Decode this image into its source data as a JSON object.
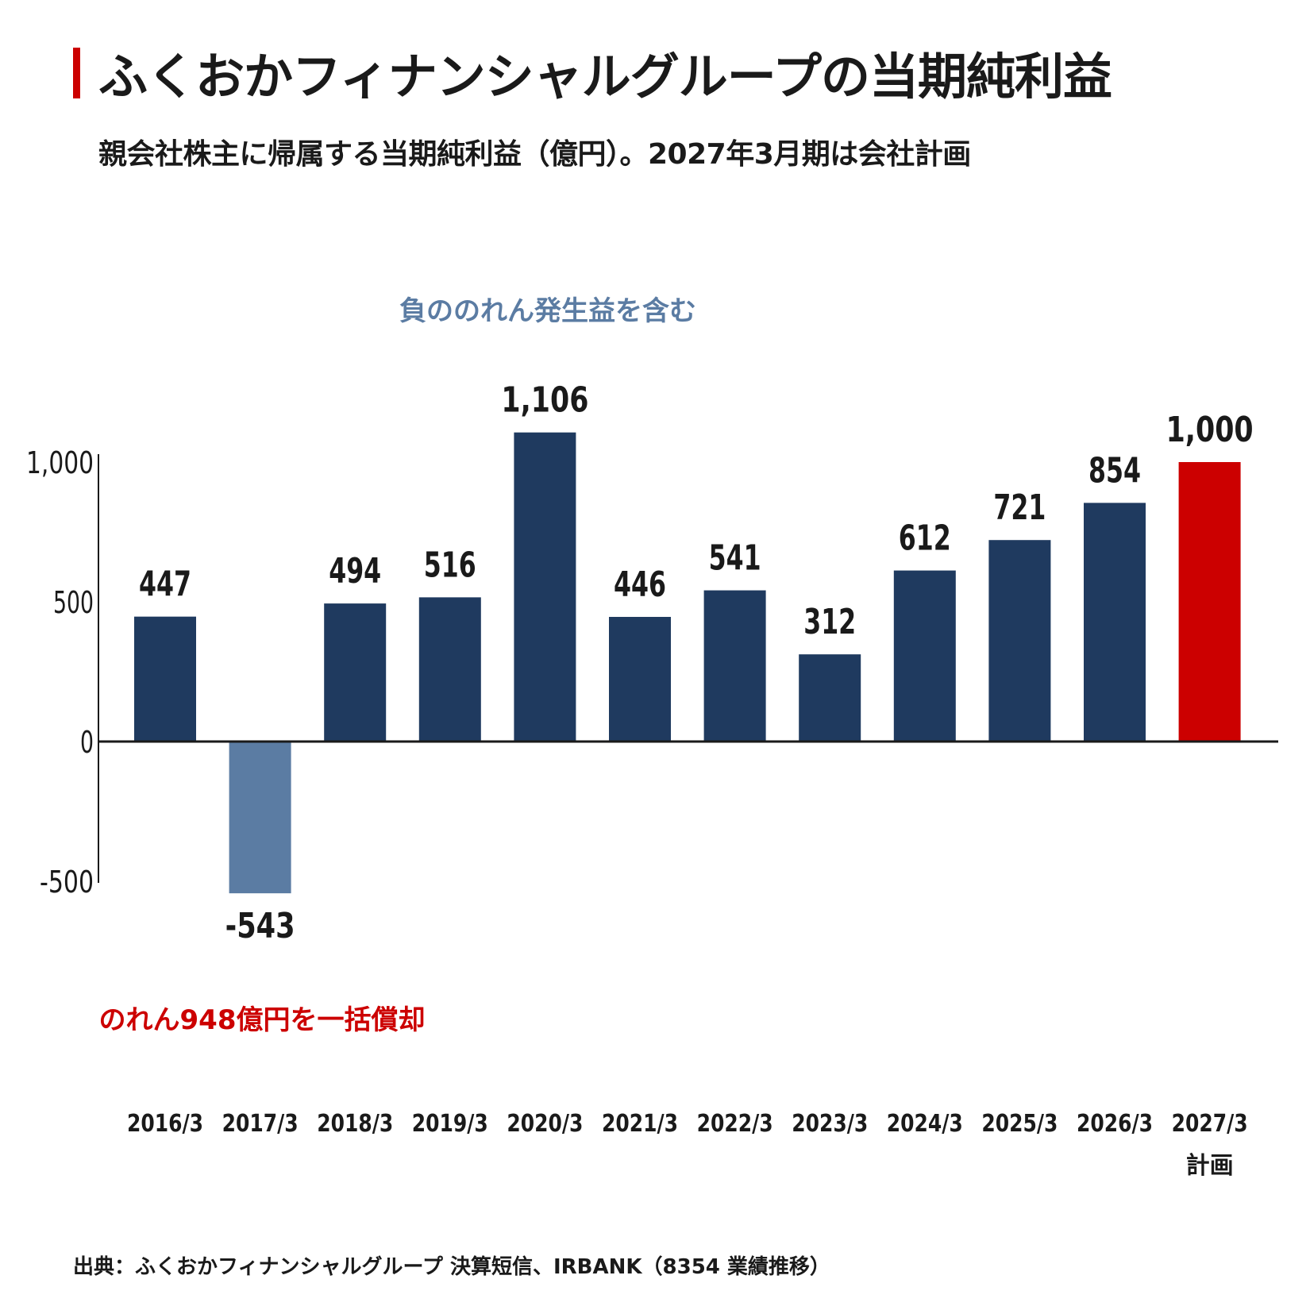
{
  "header": {
    "title": "ふくおかフィナンシャルグループの当期純利益",
    "subtitle": "親会社株主に帰属する当期純利益（億円）。2027年3月期は会社計画"
  },
  "source": "出典：ふくおかフィナンシャルグループ 決算短信、IRBANK（8354 業績推移）",
  "colors": {
    "primary_bar": "#1f3a5f",
    "negative_bar": "#5b7ca3",
    "forecast_bar": "#cc0000",
    "accent": "#cc0000",
    "annotation_blue": "#5b7ca3",
    "annotation_red": "#cc0000"
  },
  "chart_data": {
    "type": "bar",
    "title": "ふくおかフィナンシャルグループの当期純利益",
    "xlabel": "",
    "ylabel": "",
    "ylim": [
      -500,
      1000
    ],
    "yticks": [
      "-500",
      "0",
      "500",
      "1,000"
    ],
    "yticks_values": [
      -500,
      0,
      500,
      1000
    ],
    "grid": false,
    "categories": [
      "2016/3",
      "2017/3",
      "2018/3",
      "2019/3",
      "2020/3",
      "2021/3",
      "2022/3",
      "2023/3",
      "2024/3",
      "2025/3",
      "2026/3",
      "2027/3"
    ],
    "category_sublabels": [
      "",
      "",
      "",
      "",
      "",
      "",
      "",
      "",
      "",
      "",
      "",
      "計画"
    ],
    "values": [
      447,
      -543,
      494,
      516,
      1106,
      446,
      541,
      312,
      612,
      721,
      854,
      1000
    ],
    "value_labels": [
      "447",
      "-543",
      "494",
      "516",
      "1,106",
      "446",
      "541",
      "312",
      "612",
      "721",
      "854",
      "1,000"
    ],
    "bar_styles": [
      "primary",
      "negative",
      "primary",
      "primary",
      "primary",
      "primary",
      "primary",
      "primary",
      "primary",
      "primary",
      "primary",
      "forecast"
    ],
    "annotations": [
      {
        "text": "負ののれん発生益を含む",
        "color": "annotation_blue",
        "category": "2020/3"
      },
      {
        "text": "のれん948億円を一括償却",
        "color": "annotation_red",
        "category": "2017/3"
      }
    ]
  }
}
